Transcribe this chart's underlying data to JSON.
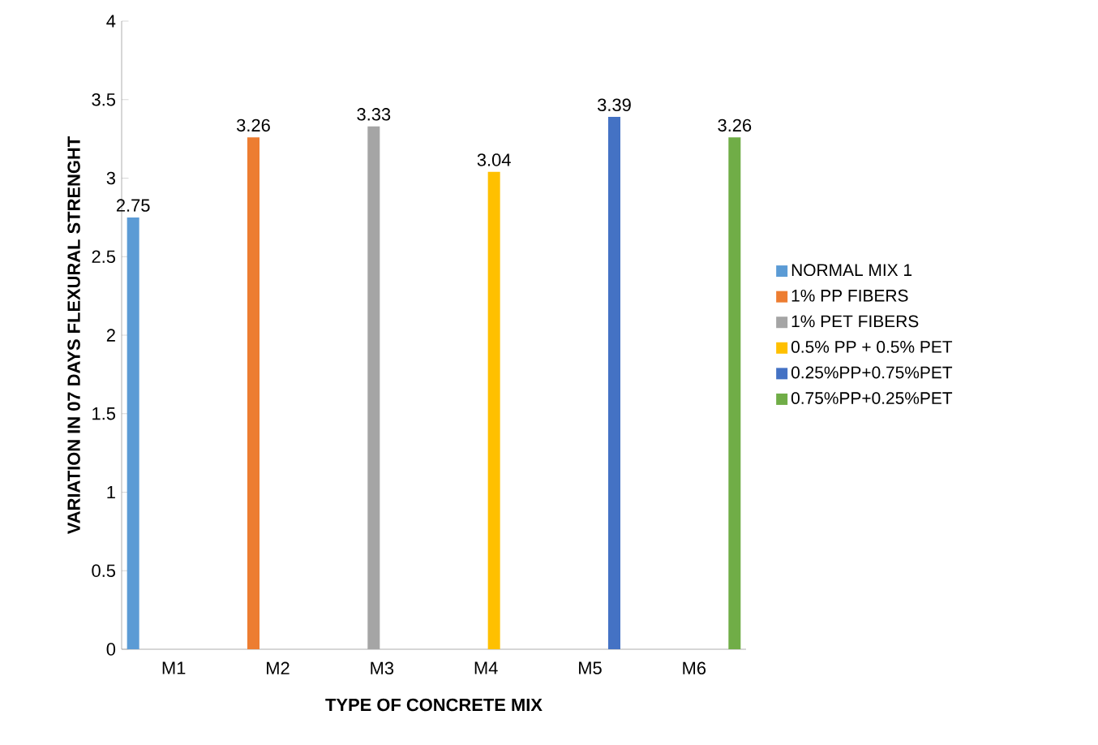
{
  "chart_data": {
    "type": "bar",
    "xlabel": "TYPE OF CONCRETE MIX",
    "ylabel": "VARIATION IN 07 DAYS FLEXURAL STRENGHT",
    "categories": [
      "M1",
      "M2",
      "M3",
      "M4",
      "M5",
      "M6"
    ],
    "series": [
      {
        "name": "NORMAL MIX 1",
        "color": "#5b9bd5",
        "values": [
          2.75,
          null,
          null,
          null,
          null,
          null
        ]
      },
      {
        "name": "1% PP FIBERS",
        "color": "#ed7d31",
        "values": [
          null,
          3.26,
          null,
          null,
          null,
          null
        ]
      },
      {
        "name": "1% PET FIBERS",
        "color": "#a5a5a5",
        "values": [
          null,
          null,
          3.33,
          null,
          null,
          null
        ]
      },
      {
        "name": "0.5% PP + 0.5% PET",
        "color": "#ffc000",
        "values": [
          null,
          null,
          null,
          3.04,
          null,
          null
        ]
      },
      {
        "name": "0.25%PP+0.75%PET",
        "color": "#4472c4",
        "values": [
          null,
          null,
          null,
          null,
          3.39,
          null
        ]
      },
      {
        "name": "0.75%PP+0.25%PET",
        "color": "#70ad47",
        "values": [
          null,
          null,
          null,
          null,
          null,
          3.26
        ]
      }
    ],
    "ylim": [
      0,
      4
    ],
    "yticks": [
      0,
      0.5,
      1,
      1.5,
      2,
      2.5,
      3,
      3.5,
      4
    ],
    "data_labels": true,
    "legend": "right"
  }
}
